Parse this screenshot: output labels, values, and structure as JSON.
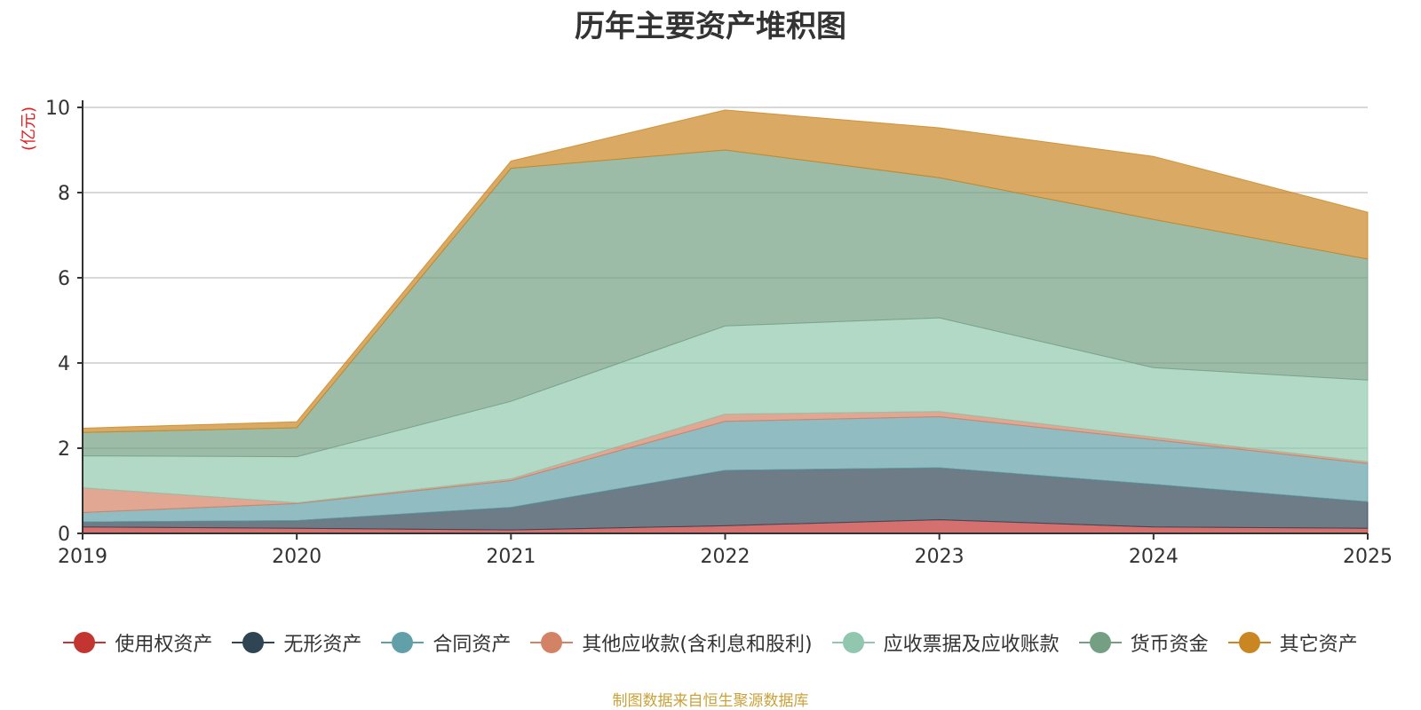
{
  "chart_data": {
    "type": "area",
    "stacked": true,
    "title": "历年主要资产堆积图",
    "ylabel": "(亿元)",
    "xlabel": "",
    "x": [
      "2019",
      "2020",
      "2021",
      "2022",
      "2023",
      "2024",
      "2025"
    ],
    "ylim": [
      0,
      10
    ],
    "yticks": [
      0,
      2,
      4,
      6,
      8,
      10
    ],
    "grid": true,
    "legend_position": "bottom",
    "series": [
      {
        "name": "使用权资产",
        "color": "#c23531",
        "values": [
          0.15,
          0.12,
          0.08,
          0.18,
          0.32,
          0.15,
          0.12
        ]
      },
      {
        "name": "无形资产",
        "color": "#2f4554",
        "values": [
          0.12,
          0.18,
          0.53,
          1.3,
          1.22,
          1.0,
          0.62
        ]
      },
      {
        "name": "合同资产",
        "color": "#61a0a8",
        "values": [
          0.22,
          0.4,
          0.63,
          1.15,
          1.2,
          1.05,
          0.9
        ]
      },
      {
        "name": "其他应收款(含利息和股利)",
        "color": "#d48265",
        "values": [
          0.58,
          0.02,
          0.04,
          0.17,
          0.12,
          0.06,
          0.04
        ]
      },
      {
        "name": "应收票据及应收账款",
        "color": "#91c7ae",
        "values": [
          0.75,
          1.08,
          1.82,
          2.07,
          2.2,
          1.63,
          1.92
        ]
      },
      {
        "name": "货币资金",
        "color": "#749f83",
        "values": [
          0.55,
          0.68,
          5.47,
          4.13,
          3.29,
          3.48,
          2.84
        ]
      },
      {
        "name": "其它资产",
        "color": "#ca8622",
        "values": [
          0.1,
          0.14,
          0.17,
          0.94,
          1.17,
          1.48,
          1.1
        ]
      }
    ]
  },
  "source_note": "制图数据来自恒生聚源数据库"
}
